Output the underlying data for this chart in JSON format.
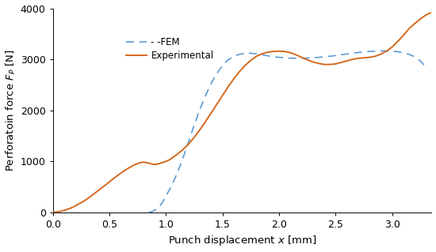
{
  "xlabel": "Punch displacement $x$ [mm]",
  "ylabel": "Perforatoin force $F_P$ [N]",
  "xlim": [
    0,
    3.35
  ],
  "ylim": [
    0,
    4000
  ],
  "xticks": [
    0,
    0.5,
    1,
    1.5,
    2,
    2.5,
    3
  ],
  "yticks": [
    0,
    1000,
    2000,
    3000,
    4000
  ],
  "experimental_color": "#d4691e",
  "fem_color": "#5b9bd5",
  "experimental_x": [
    0.0,
    0.03,
    0.06,
    0.1,
    0.14,
    0.18,
    0.22,
    0.27,
    0.32,
    0.37,
    0.42,
    0.47,
    0.52,
    0.57,
    0.62,
    0.67,
    0.72,
    0.77,
    0.8,
    0.83,
    0.86,
    0.88,
    0.9,
    0.92,
    0.94,
    0.96,
    0.98,
    1.0,
    1.03,
    1.06,
    1.1,
    1.15,
    1.2,
    1.25,
    1.3,
    1.35,
    1.4,
    1.45,
    1.5,
    1.55,
    1.6,
    1.65,
    1.7,
    1.75,
    1.8,
    1.85,
    1.9,
    1.95,
    2.0,
    2.05,
    2.1,
    2.15,
    2.2,
    2.25,
    2.3,
    2.35,
    2.4,
    2.45,
    2.5,
    2.55,
    2.6,
    2.65,
    2.7,
    2.75,
    2.8,
    2.85,
    2.9,
    2.95,
    3.0,
    3.05,
    3.1,
    3.15,
    3.2,
    3.25,
    3.3,
    3.35
  ],
  "experimental_y": [
    0,
    8,
    18,
    40,
    70,
    105,
    155,
    215,
    290,
    375,
    460,
    545,
    635,
    720,
    800,
    870,
    930,
    975,
    985,
    975,
    960,
    945,
    940,
    945,
    955,
    970,
    985,
    1000,
    1030,
    1075,
    1140,
    1230,
    1340,
    1470,
    1620,
    1780,
    1950,
    2120,
    2290,
    2460,
    2620,
    2760,
    2880,
    2980,
    3060,
    3110,
    3140,
    3155,
    3160,
    3155,
    3130,
    3090,
    3040,
    2990,
    2950,
    2920,
    2900,
    2900,
    2910,
    2940,
    2970,
    3000,
    3020,
    3030,
    3040,
    3060,
    3100,
    3160,
    3240,
    3350,
    3470,
    3600,
    3700,
    3790,
    3870,
    3920
  ],
  "fem_x": [
    0.85,
    0.88,
    0.91,
    0.94,
    0.97,
    1.0,
    1.05,
    1.1,
    1.15,
    1.2,
    1.25,
    1.3,
    1.35,
    1.4,
    1.45,
    1.5,
    1.55,
    1.6,
    1.65,
    1.7,
    1.75,
    1.8,
    1.85,
    1.9,
    1.95,
    2.0,
    2.05,
    2.1,
    2.15,
    2.2,
    2.25,
    2.3,
    2.35,
    2.4,
    2.45,
    2.5,
    2.55,
    2.6,
    2.65,
    2.7,
    2.75,
    2.8,
    2.85,
    2.9,
    2.95,
    3.0,
    3.05,
    3.1,
    3.15,
    3.2,
    3.25,
    3.3
  ],
  "fem_y": [
    0,
    20,
    55,
    110,
    200,
    320,
    520,
    770,
    1060,
    1380,
    1710,
    2020,
    2290,
    2530,
    2720,
    2880,
    2990,
    3060,
    3100,
    3120,
    3120,
    3110,
    3090,
    3070,
    3050,
    3040,
    3030,
    3025,
    3020,
    3020,
    3025,
    3030,
    3040,
    3050,
    3060,
    3075,
    3090,
    3105,
    3120,
    3135,
    3145,
    3155,
    3160,
    3165,
    3165,
    3160,
    3150,
    3130,
    3100,
    3050,
    2970,
    2850
  ],
  "background_color": "#ffffff",
  "legend_fem_label": "- -FEM",
  "legend_exp_label": "Experimental"
}
